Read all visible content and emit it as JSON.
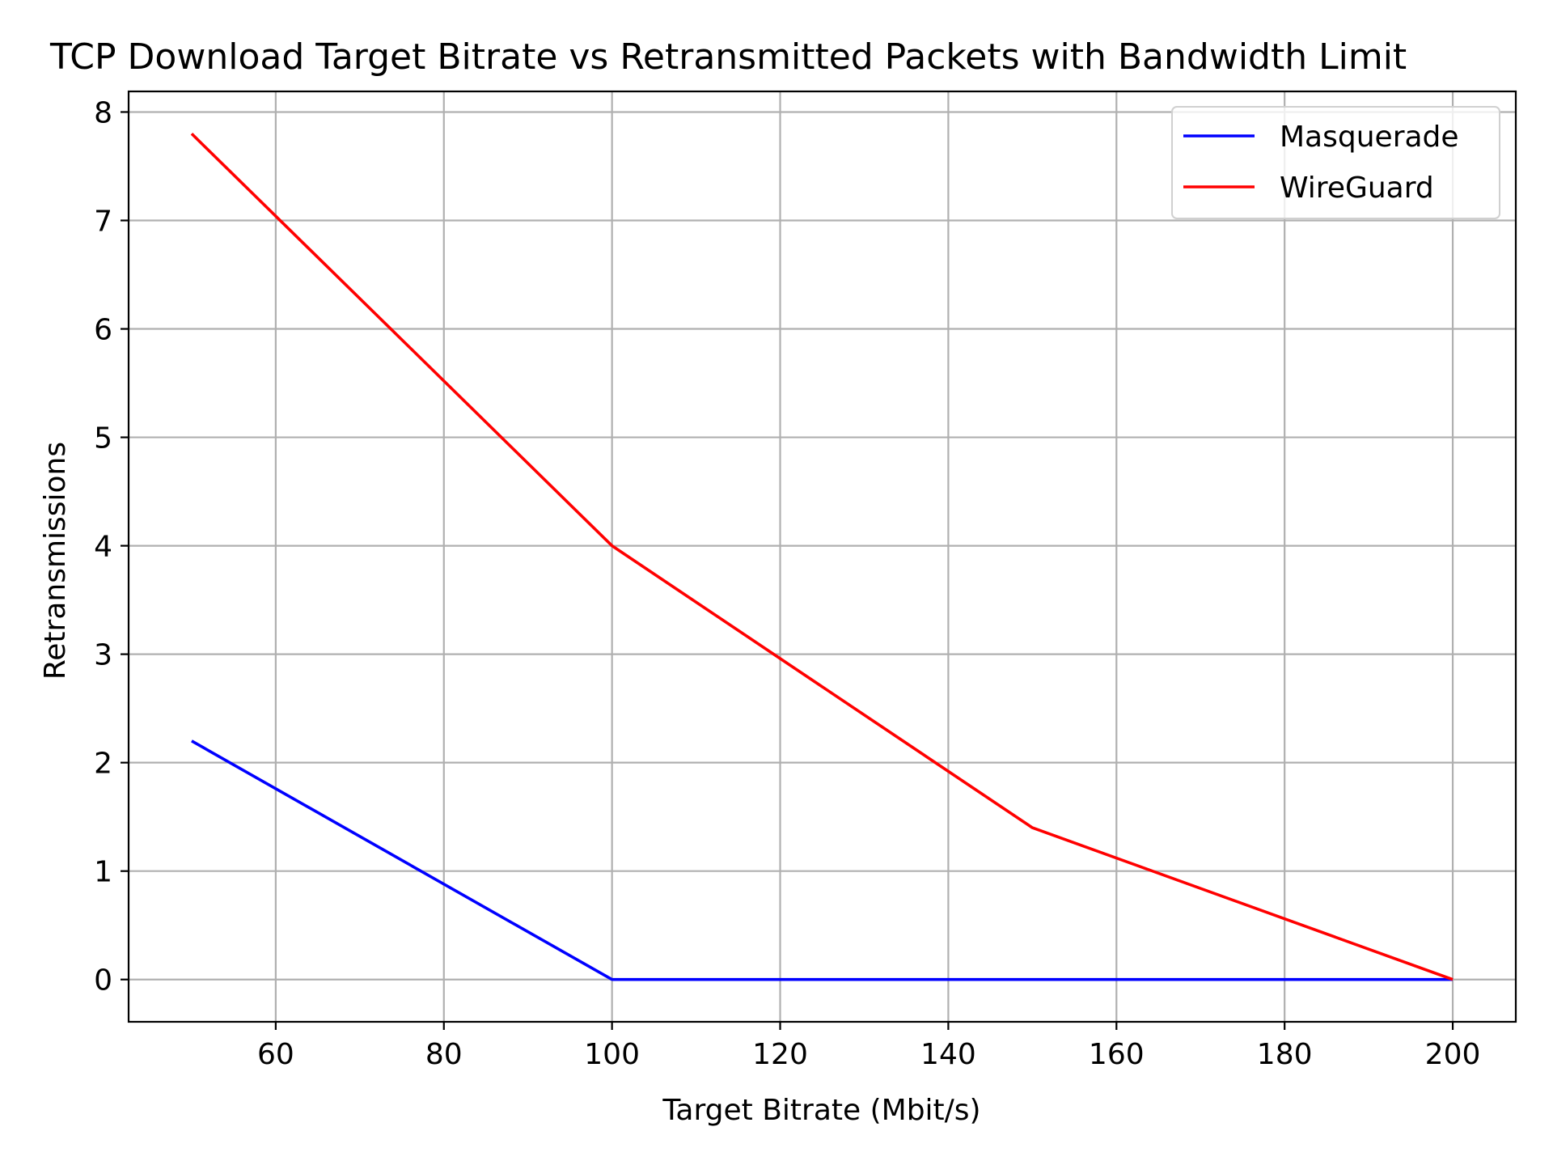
{
  "chart_data": {
    "type": "line",
    "title": "TCP Download Target Bitrate vs Retransmitted Packets with Bandwidth Limit",
    "xlabel": "Target Bitrate (Mbit/s)",
    "ylabel": "Retransmissions",
    "x": [
      50,
      100,
      150,
      200
    ],
    "xlim": [
      42.5,
      207.5
    ],
    "ylim": [
      -0.39,
      8.19
    ],
    "xticks": [
      60,
      80,
      100,
      120,
      140,
      160,
      180,
      200
    ],
    "yticks": [
      0,
      1,
      2,
      3,
      4,
      5,
      6,
      7,
      8
    ],
    "grid": true,
    "legend_position": "upper right",
    "series": [
      {
        "name": "Masquerade",
        "color": "#0000ff",
        "values": [
          2.2,
          0,
          0,
          0
        ]
      },
      {
        "name": "WireGuard",
        "color": "#ff0000",
        "values": [
          7.8,
          4.0,
          1.4,
          0
        ]
      }
    ]
  }
}
